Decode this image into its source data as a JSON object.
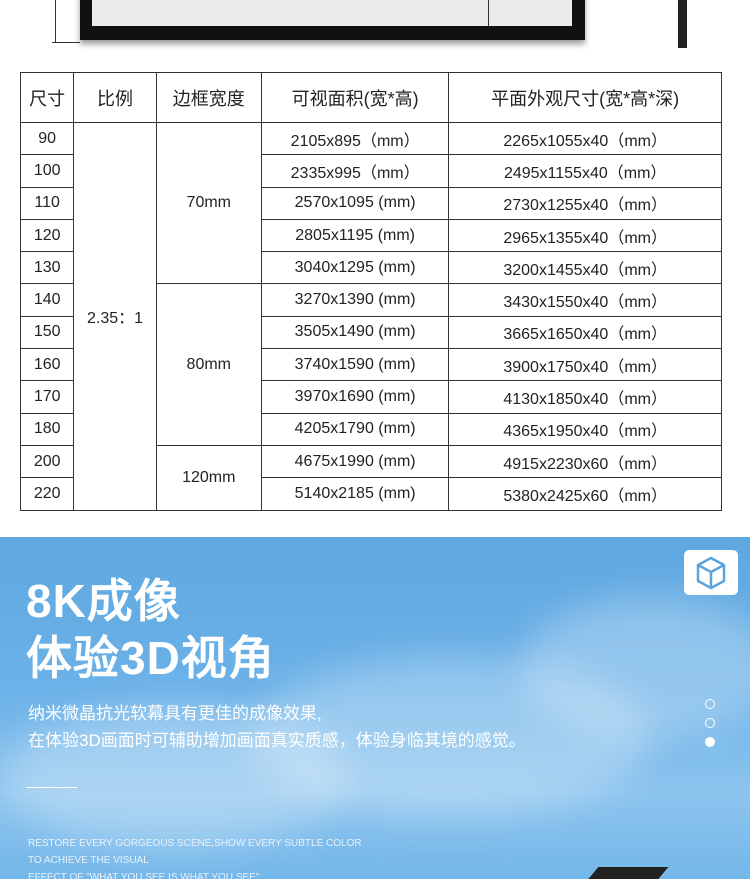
{
  "table": {
    "headers": [
      "尺寸",
      "比例",
      "边框宽度",
      "可视面积(宽*高)",
      "平面外观尺寸(宽*高*深)"
    ],
    "ratio": "2.35：1",
    "frames": [
      "70mm",
      "80mm",
      "120mm"
    ],
    "rows": [
      [
        "90",
        "2105x895（mm）",
        "2265x1055x40（mm）"
      ],
      [
        "100",
        "2335x995（mm）",
        "2495x1155x40（mm）"
      ],
      [
        "110",
        "2570x1095 (mm)",
        "2730x1255x40（mm）"
      ],
      [
        "120",
        "2805x1195 (mm)",
        "2965x1355x40（mm）"
      ],
      [
        "130",
        "3040x1295 (mm)",
        "3200x1455x40（mm）"
      ],
      [
        "140",
        "3270x1390 (mm)",
        "3430x1550x40（mm）"
      ],
      [
        "150",
        "3505x1490 (mm)",
        "3665x1650x40（mm）"
      ],
      [
        "160",
        "3740x1590 (mm)",
        "3900x1750x40（mm）"
      ],
      [
        "170",
        "3970x1690 (mm)",
        "4130x1850x40（mm）"
      ],
      [
        "180",
        "4205x1790 (mm)",
        "4365x1950x40（mm）"
      ],
      [
        "200",
        "4675x1990 (mm)",
        "4915x2230x60（mm）"
      ],
      [
        "220",
        "5140x2185 (mm)",
        "5380x2425x60（mm）"
      ]
    ]
  },
  "banner": {
    "title1": "8K成像",
    "title2": "体验3D视角",
    "desc1": "纳米微晶抗光软幕具有更佳的成像效果,",
    "desc2": "在体验3D画面时可辅助增加画面真实质感，体验身临其境的感觉。",
    "en1": "RESTORE EVERY GORGEOUS SCENE,SHOW EVERY SUBTLE COLOR",
    "en2": "TO ACHIEVE THE VISUAL",
    "en3": "EFFECT OF \"WHAT YOU SEE IS WHAT YOU SEE\"",
    "icon": "cube-icon",
    "active_dot": 3
  }
}
